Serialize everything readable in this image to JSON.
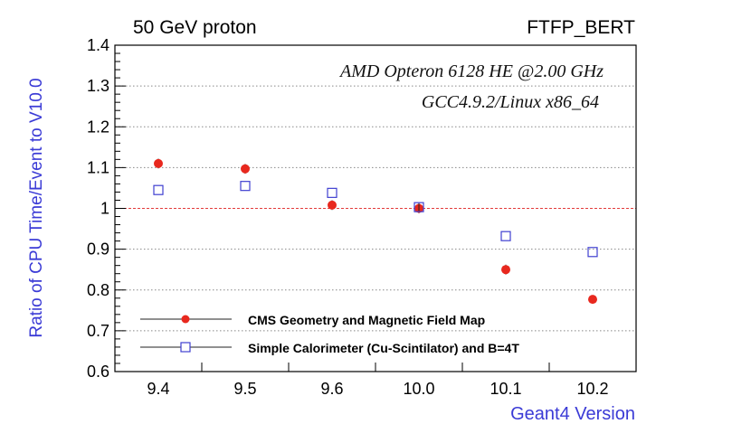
{
  "chart_data": {
    "type": "scatter",
    "title_left": "50 GeV proton",
    "title_right": "FTFP_BERT",
    "annotations": [
      "AMD Opteron 6128 HE @2.00 GHz",
      "GCC4.9.2/Linux x86_64"
    ],
    "xlabel": "Geant4 Version",
    "ylabel": "Ratio of CPU Time/Event to V10.0",
    "categories": [
      "9.4",
      "9.5",
      "9.6",
      "10.0",
      "10.1",
      "10.2"
    ],
    "ylim": [
      0.6,
      1.4
    ],
    "y_ticks": [
      "0.6",
      "0.7",
      "0.8",
      "0.9",
      "1",
      "1.1",
      "1.2",
      "1.3",
      "1.4"
    ],
    "grid": "horizontal dotted",
    "reference_line": 1.0,
    "series": [
      {
        "name": "CMS Geometry and Magnetic Field Map",
        "marker": "filled-circle",
        "color": "#e8281e",
        "values": [
          1.11,
          1.097,
          1.008,
          1.0,
          0.85,
          0.777
        ],
        "errors": [
          0.012,
          0.012,
          0.012,
          0.012,
          0.012,
          0.004
        ]
      },
      {
        "name": "Simple Calorimeter (Cu-Scintilator) and B=4T",
        "marker": "open-square",
        "color": "#3f3fd0",
        "values": [
          1.045,
          1.055,
          1.038,
          1.003,
          0.932,
          0.893
        ],
        "errors": [
          0,
          0,
          0,
          0.01,
          0,
          0
        ]
      }
    ],
    "legend_position": "bottom-left",
    "colors": {
      "axis_label": "#3b3bd6",
      "grid": "#888888",
      "reference": "#e33b3b"
    }
  }
}
